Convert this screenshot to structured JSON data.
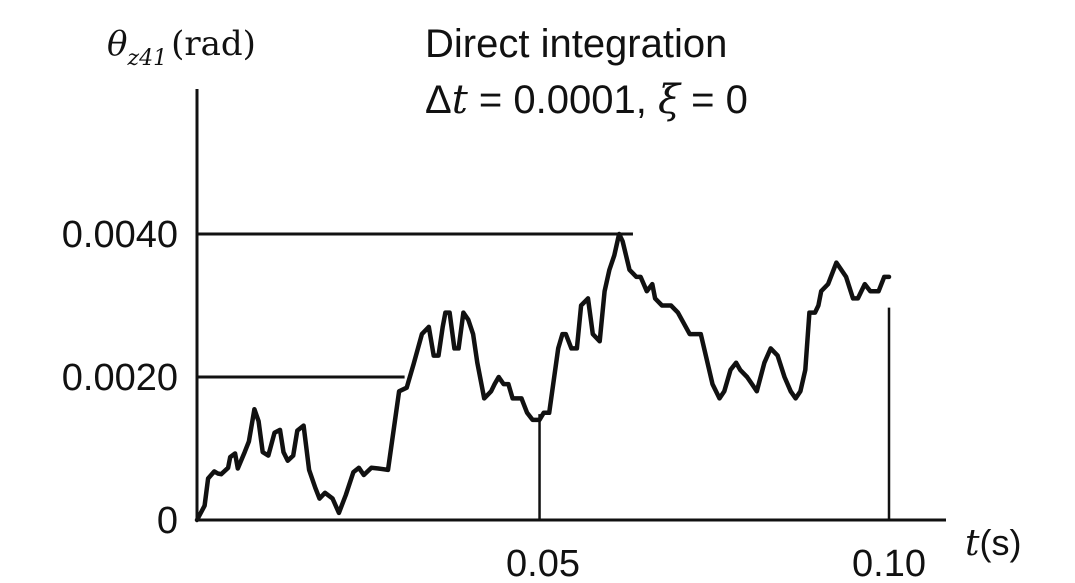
{
  "chart_data": {
    "type": "line",
    "title": "Direct integration",
    "subtitle": {
      "dt_symbol": "Δ",
      "dt_var": "t",
      "dt_eq": " = 0.0001, ",
      "xi_var": "ξ",
      "xi_eq": " = 0"
    },
    "ylabel": {
      "symbol": "θ",
      "subscript": "z41",
      "unit": "(rad)"
    },
    "xlabel": {
      "var": "t",
      "unit": "(s)"
    },
    "xlim": [
      0,
      0.107
    ],
    "ylim": [
      0,
      0.0058
    ],
    "y_ticks": [
      {
        "value": 0,
        "label": "0"
      },
      {
        "value": 0.002,
        "label": "0.0020"
      },
      {
        "value": 0.004,
        "label": "0.0040"
      }
    ],
    "x_ticks": [
      {
        "value": 0.05,
        "label": "0.05"
      },
      {
        "value": 0.1,
        "label": "0.10"
      }
    ],
    "reference_lines": [
      {
        "y": 0.004,
        "x_from": 0.0,
        "x_to": 0.063
      },
      {
        "y": 0.002,
        "x_from": 0.0,
        "x_to": 0.03
      }
    ],
    "marker_lines": [
      {
        "x": 0.0495,
        "y_from": 0.0,
        "y_to": 0.00148
      },
      {
        "x": 0.1,
        "y_from": 0.0,
        "y_to": 0.00297
      }
    ],
    "series": [
      {
        "x": [
          0.0,
          0.0011,
          0.0016,
          0.0025,
          0.003,
          0.0035,
          0.0045,
          0.0048,
          0.0055,
          0.0059,
          0.0069,
          0.0075,
          0.0083,
          0.0089,
          0.0095,
          0.0103,
          0.0112,
          0.012,
          0.0125,
          0.0131,
          0.0139,
          0.0145,
          0.0154,
          0.0162,
          0.0171,
          0.0177,
          0.0185,
          0.0196,
          0.0205,
          0.0215,
          0.0226,
          0.0234,
          0.0241,
          0.0252,
          0.0262,
          0.0276,
          0.0292,
          0.0303,
          0.0313,
          0.0325,
          0.0335,
          0.0342,
          0.0349,
          0.0355,
          0.0359,
          0.0365,
          0.0372,
          0.0378,
          0.0385,
          0.0392,
          0.0399,
          0.0405,
          0.0415,
          0.0425,
          0.043,
          0.0436,
          0.0443,
          0.045,
          0.0456,
          0.0469,
          0.0477,
          0.0485,
          0.0495,
          0.0501,
          0.0506,
          0.0509,
          0.0522,
          0.0528,
          0.0533,
          0.0541,
          0.0549,
          0.0555,
          0.0565,
          0.0572,
          0.0582,
          0.0589,
          0.0596,
          0.0603,
          0.061,
          0.0615,
          0.0625,
          0.0635,
          0.0641,
          0.065,
          0.0658,
          0.0662,
          0.0672,
          0.0685,
          0.0695,
          0.0712,
          0.0728,
          0.0745,
          0.0755,
          0.0762,
          0.0771,
          0.0779,
          0.0785,
          0.0795,
          0.0802,
          0.0809,
          0.082,
          0.0829,
          0.0839,
          0.0849,
          0.0858,
          0.0865,
          0.0872,
          0.0879,
          0.0885,
          0.0893,
          0.0898,
          0.0902,
          0.0912,
          0.0924,
          0.0938,
          0.0948,
          0.0955,
          0.0965,
          0.0973,
          0.0985,
          0.0993,
          0.1
        ],
        "values": [
          0.0,
          0.0002,
          0.00058,
          0.00068,
          0.00065,
          0.00064,
          0.00073,
          0.00088,
          0.00093,
          0.00072,
          0.00095,
          0.0011,
          0.00155,
          0.00138,
          0.00095,
          0.0009,
          0.00122,
          0.00126,
          0.00095,
          0.00083,
          0.0009,
          0.00125,
          0.00132,
          0.0007,
          0.00045,
          0.0003,
          0.00038,
          0.0003,
          0.0001,
          0.00035,
          0.00067,
          0.00073,
          0.00063,
          0.00073,
          0.00072,
          0.0007,
          0.0018,
          0.00185,
          0.00218,
          0.0026,
          0.0027,
          0.0023,
          0.0023,
          0.0027,
          0.0029,
          0.0029,
          0.0024,
          0.0024,
          0.0029,
          0.0028,
          0.0026,
          0.0022,
          0.0017,
          0.0018,
          0.0019,
          0.002,
          0.0019,
          0.0019,
          0.0017,
          0.0017,
          0.0015,
          0.0014,
          0.0014,
          0.0015,
          0.0015,
          0.0015,
          0.0024,
          0.0026,
          0.0026,
          0.0024,
          0.0024,
          0.003,
          0.0031,
          0.0026,
          0.0025,
          0.0032,
          0.0035,
          0.0037,
          0.004,
          0.0039,
          0.0035,
          0.0034,
          0.0034,
          0.0032,
          0.0033,
          0.0031,
          0.003,
          0.003,
          0.0029,
          0.0026,
          0.0026,
          0.0019,
          0.0017,
          0.0018,
          0.0021,
          0.0022,
          0.0021,
          0.002,
          0.0019,
          0.0018,
          0.0022,
          0.0024,
          0.0023,
          0.002,
          0.0018,
          0.0017,
          0.0018,
          0.0021,
          0.0029,
          0.0029,
          0.003,
          0.0032,
          0.0033,
          0.0036,
          0.0034,
          0.0031,
          0.0031,
          0.0033,
          0.0032,
          0.0032,
          0.0034,
          0.0034
        ]
      }
    ]
  }
}
